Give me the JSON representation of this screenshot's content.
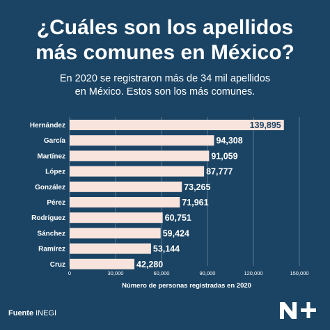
{
  "header": {
    "title_line1": "¿Cuáles son los apellidos",
    "title_line2": "más comunes en México?",
    "subtitle_line1": "En 2020 se registraron más de 34 mil apellidos",
    "subtitle_line2": "en México. Estos son los más comunes."
  },
  "footer": {
    "source_label": "Fuente",
    "source_value": "INEGI"
  },
  "colors": {
    "background": "#1b4464",
    "bar": "#f8e4dc",
    "text": "#ffffff",
    "grid": "#ffffff"
  },
  "chart_data": {
    "type": "bar",
    "orientation": "horizontal",
    "categories": [
      "Hernández",
      "García",
      "Martínez",
      "López",
      "González",
      "Pérez",
      "Rodríguez",
      "Sánchez",
      "Ramírez",
      "Cruz"
    ],
    "values": [
      139895,
      94308,
      91059,
      87777,
      73265,
      71961,
      60751,
      59424,
      53144,
      42280
    ],
    "value_labels": [
      "139,895",
      "94,308",
      "91,059",
      "87,777",
      "73,265",
      "71,961",
      "60,751",
      "59,424",
      "53,144",
      "42,280"
    ],
    "xticks": [
      0,
      30000,
      60000,
      90000,
      120000,
      150000
    ],
    "xtick_labels": [
      "0",
      "30,000",
      "60,000",
      "90,000",
      "120,000",
      "150,000"
    ],
    "xlim": [
      0,
      150000
    ],
    "xlabel": "Número de personas registradas en 2020",
    "ylabel": "",
    "grid": true
  }
}
